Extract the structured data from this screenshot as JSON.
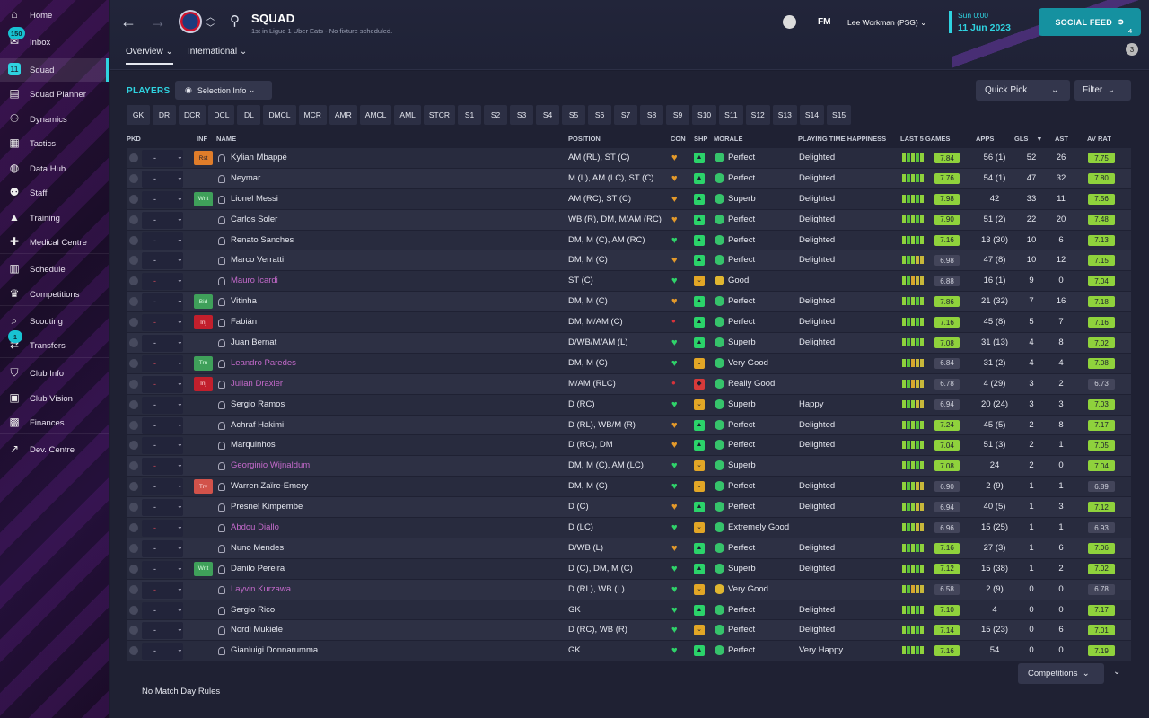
{
  "sidebar": {
    "items": [
      {
        "label": "Home",
        "icon": "home-icon",
        "glyph": "⌂",
        "badge": ""
      },
      {
        "label": "Inbox",
        "icon": "inbox-icon",
        "glyph": "✉",
        "badge": "150"
      },
      {
        "label": "Squad",
        "icon": "squad-icon",
        "glyph": "11",
        "badge": ""
      },
      {
        "label": "Squad Planner",
        "icon": "clipboard-icon",
        "glyph": "▤",
        "badge": ""
      },
      {
        "label": "Dynamics",
        "icon": "dynamics-icon",
        "glyph": "⚇",
        "badge": ""
      },
      {
        "label": "Tactics",
        "icon": "tactics-icon",
        "glyph": "▦",
        "badge": ""
      },
      {
        "label": "Data Hub",
        "icon": "data-hub-icon",
        "glyph": "◍",
        "badge": ""
      },
      {
        "label": "Staff",
        "icon": "staff-icon",
        "glyph": "⚉",
        "badge": ""
      },
      {
        "label": "Training",
        "icon": "training-icon",
        "glyph": "▲",
        "badge": ""
      },
      {
        "label": "Medical Centre",
        "icon": "medical-icon",
        "glyph": "✚",
        "badge": ""
      },
      {
        "label": "Schedule",
        "icon": "schedule-icon",
        "glyph": "▥",
        "badge": ""
      },
      {
        "label": "Competitions",
        "icon": "trophy-icon",
        "glyph": "♛",
        "badge": ""
      },
      {
        "label": "Scouting",
        "icon": "scouting-icon",
        "glyph": "⌕",
        "badge": ""
      },
      {
        "label": "Transfers",
        "icon": "transfers-icon",
        "glyph": "⇄",
        "badge": "1"
      },
      {
        "label": "Club Info",
        "icon": "shield-icon",
        "glyph": "⛉",
        "badge": ""
      },
      {
        "label": "Club Vision",
        "icon": "briefcase-icon",
        "glyph": "▣",
        "badge": ""
      },
      {
        "label": "Finances",
        "icon": "finances-icon",
        "glyph": "▩",
        "badge": ""
      },
      {
        "label": "Dev. Centre",
        "icon": "dev-centre-icon",
        "glyph": "↗",
        "badge": ""
      }
    ],
    "active": "Squad"
  },
  "topbar": {
    "title": "SQUAD",
    "subtitle": "1st in Ligue 1 Uber Eats - No fixture scheduled.",
    "tabs": [
      "Overview",
      "International"
    ],
    "manager": "Lee Workman (PSG)",
    "fm_logo": "FM",
    "time": "Sun 0:00",
    "date": "11 Jun 2023",
    "social_feed": "SOCIAL FEED",
    "social_count": "4",
    "notification_count": "3"
  },
  "toolbar": {
    "players_label": "PLAYERS",
    "selection_info": "Selection Info",
    "quick_pick": "Quick Pick",
    "filter": "Filter"
  },
  "positions": [
    "GK",
    "DR",
    "DCR",
    "DCL",
    "DL",
    "DMCL",
    "MCR",
    "AMR",
    "AMCL",
    "AML",
    "STCR",
    "S1",
    "S2",
    "S3",
    "S4",
    "S5",
    "S6",
    "S7",
    "S8",
    "S9",
    "S10",
    "S11",
    "S12",
    "S13",
    "S14",
    "S15"
  ],
  "columns": {
    "pkd": "PKD",
    "inf": "INF",
    "name": "NAME",
    "position": "POSITION",
    "con": "CON",
    "shp": "SHP",
    "morale": "MORALE",
    "pth": "PLAYING TIME HAPPINESS",
    "last5": "LAST 5 GAMES",
    "apps": "APPS",
    "gls": "GLS",
    "ast": "AST",
    "avrat": "AV RAT"
  },
  "players": [
    {
      "name": "Kylian Mbappé",
      "loan": false,
      "inf": "Rst",
      "pos": "AM (RL), ST (C)",
      "con": "h",
      "shp": "g",
      "mor": "Perfect",
      "morc": "g",
      "pth": "Delighted",
      "l5": "ggggg",
      "l5r": "7.84",
      "apps": "56 (1)",
      "gls": "52",
      "ast": "26",
      "avr": "7.75",
      "pkdRed": false
    },
    {
      "name": "Neymar",
      "loan": false,
      "inf": "",
      "pos": "M (L), AM (LC), ST (C)",
      "con": "h",
      "shp": "g",
      "mor": "Perfect",
      "morc": "g",
      "pth": "Delighted",
      "l5": "ggggg",
      "l5r": "7.76",
      "apps": "54 (1)",
      "gls": "47",
      "ast": "32",
      "avr": "7.80",
      "pkdRed": false
    },
    {
      "name": "Lionel Messi",
      "loan": false,
      "inf": "Wnt",
      "pos": "AM (RC), ST (C)",
      "con": "h",
      "shp": "g",
      "mor": "Superb",
      "morc": "g",
      "pth": "Delighted",
      "l5": "ggggg",
      "l5r": "7.98",
      "apps": "42",
      "gls": "33",
      "ast": "11",
      "avr": "7.56",
      "pkdRed": false
    },
    {
      "name": "Carlos Soler",
      "loan": false,
      "inf": "",
      "pos": "WB (R), DM, M/AM (RC)",
      "con": "h",
      "shp": "g",
      "mor": "Perfect",
      "morc": "g",
      "pth": "Delighted",
      "l5": "ggggg",
      "l5r": "7.90",
      "apps": "51 (2)",
      "gls": "22",
      "ast": "20",
      "avr": "7.48",
      "pkdRed": false
    },
    {
      "name": "Renato Sanches",
      "loan": false,
      "inf": "",
      "pos": "DM, M (C), AM (RC)",
      "con": "g",
      "shp": "g",
      "mor": "Perfect",
      "morc": "g",
      "pth": "Delighted",
      "l5": "ggggg",
      "l5r": "7.16",
      "apps": "13 (30)",
      "gls": "10",
      "ast": "6",
      "avr": "7.13",
      "pkdRed": false
    },
    {
      "name": "Marco Verratti",
      "loan": false,
      "inf": "",
      "pos": "DM, M (C)",
      "con": "h",
      "shp": "g",
      "mor": "Perfect",
      "morc": "g",
      "pth": "Delighted",
      "l5": "ggggg",
      "l5r": "6.98",
      "apps": "47 (8)",
      "gls": "10",
      "ast": "12",
      "avr": "7.15",
      "pkdRed": false
    },
    {
      "name": "Mauro Icardi",
      "loan": true,
      "inf": "",
      "pos": "ST (C)",
      "con": "g",
      "shp": "y",
      "mor": "Good",
      "morc": "y",
      "pth": "",
      "l5": "ooooo",
      "l5r": "6.88",
      "apps": "16 (1)",
      "gls": "9",
      "ast": "0",
      "avr": "7.04",
      "pkdRed": true
    },
    {
      "name": "Vitinha",
      "loan": false,
      "inf": "Bid",
      "pos": "DM, M (C)",
      "con": "h",
      "shp": "g",
      "mor": "Perfect",
      "morc": "g",
      "pth": "Delighted",
      "l5": "ggggg",
      "l5r": "7.86",
      "apps": "21 (32)",
      "gls": "7",
      "ast": "16",
      "avr": "7.18",
      "pkdRed": false
    },
    {
      "name": "Fabián",
      "loan": false,
      "inf": "Inj",
      "pos": "DM, M/AM (C)",
      "con": "r",
      "shp": "g",
      "mor": "Perfect",
      "morc": "g",
      "pth": "Delighted",
      "l5": "ggggg",
      "l5r": "7.16",
      "apps": "45 (8)",
      "gls": "5",
      "ast": "7",
      "avr": "7.16",
      "pkdRed": true
    },
    {
      "name": "Juan Bernat",
      "loan": false,
      "inf": "",
      "pos": "D/WB/M/AM (L)",
      "con": "g",
      "shp": "g",
      "mor": "Superb",
      "morc": "g",
      "pth": "Delighted",
      "l5": "ggggg",
      "l5r": "7.08",
      "apps": "31 (13)",
      "gls": "4",
      "ast": "8",
      "avr": "7.02",
      "pkdRed": false
    },
    {
      "name": "Leandro Paredes",
      "loan": true,
      "inf": "Trn",
      "pos": "DM, M (C)",
      "con": "g",
      "shp": "y",
      "mor": "Very Good",
      "morc": "g",
      "pth": "",
      "l5": "ggggg",
      "l5r": "6.84",
      "apps": "31 (2)",
      "gls": "4",
      "ast": "4",
      "avr": "7.08",
      "pkdRed": true
    },
    {
      "name": "Julian Draxler",
      "loan": true,
      "inf": "Inj",
      "pos": "M/AM (RLC)",
      "con": "r",
      "shp": "r",
      "mor": "Really Good",
      "morc": "g",
      "pth": "",
      "l5": "ggggg",
      "l5r": "6.78",
      "apps": "4 (29)",
      "gls": "3",
      "ast": "2",
      "avr": "6.73",
      "pkdRed": true
    },
    {
      "name": "Sergio Ramos",
      "loan": false,
      "inf": "",
      "pos": "D (RC)",
      "con": "g",
      "shp": "y",
      "mor": "Superb",
      "morc": "g",
      "pth": "Happy",
      "l5": "ggggg",
      "l5r": "6.94",
      "apps": "20 (24)",
      "gls": "3",
      "ast": "3",
      "avr": "7.03",
      "pkdRed": false
    },
    {
      "name": "Achraf Hakimi",
      "loan": false,
      "inf": "",
      "pos": "D (RL), WB/M (R)",
      "con": "h",
      "shp": "g",
      "mor": "Perfect",
      "morc": "g",
      "pth": "Delighted",
      "l5": "ggggg",
      "l5r": "7.24",
      "apps": "45 (5)",
      "gls": "2",
      "ast": "8",
      "avr": "7.17",
      "pkdRed": false
    },
    {
      "name": "Marquinhos",
      "loan": false,
      "inf": "",
      "pos": "D (RC), DM",
      "con": "h",
      "shp": "g",
      "mor": "Perfect",
      "morc": "g",
      "pth": "Delighted",
      "l5": "ggggg",
      "l5r": "7.04",
      "apps": "51 (3)",
      "gls": "2",
      "ast": "1",
      "avr": "7.05",
      "pkdRed": false
    },
    {
      "name": "Georginio Wijnaldum",
      "loan": true,
      "inf": "",
      "pos": "DM, M (C), AM (LC)",
      "con": "g",
      "shp": "y",
      "mor": "Superb",
      "morc": "g",
      "pth": "",
      "l5": "ggggg",
      "l5r": "7.08",
      "apps": "24",
      "gls": "2",
      "ast": "0",
      "avr": "7.04",
      "pkdRed": true
    },
    {
      "name": "Warren Zaïre-Emery",
      "loan": false,
      "inf": "Trv",
      "pos": "DM, M (C)",
      "con": "g",
      "shp": "y",
      "mor": "Perfect",
      "morc": "g",
      "pth": "Delighted",
      "l5": "ggggg",
      "l5r": "6.90",
      "apps": "2 (9)",
      "gls": "1",
      "ast": "1",
      "avr": "6.89",
      "pkdRed": false
    },
    {
      "name": "Presnel Kimpembe",
      "loan": false,
      "inf": "",
      "pos": "D (C)",
      "con": "h",
      "shp": "g",
      "mor": "Perfect",
      "morc": "g",
      "pth": "Delighted",
      "l5": "ggggg",
      "l5r": "6.94",
      "apps": "40 (5)",
      "gls": "1",
      "ast": "3",
      "avr": "7.12",
      "pkdRed": false
    },
    {
      "name": "Abdou Diallo",
      "loan": true,
      "inf": "",
      "pos": "D (LC)",
      "con": "g",
      "shp": "y",
      "mor": "Extremely Good",
      "morc": "g",
      "pth": "",
      "l5": "ggggg",
      "l5r": "6.96",
      "apps": "15 (25)",
      "gls": "1",
      "ast": "1",
      "avr": "6.93",
      "pkdRed": true
    },
    {
      "name": "Nuno Mendes",
      "loan": false,
      "inf": "",
      "pos": "D/WB (L)",
      "con": "h",
      "shp": "g",
      "mor": "Perfect",
      "morc": "g",
      "pth": "Delighted",
      "l5": "ggggg",
      "l5r": "7.16",
      "apps": "27 (3)",
      "gls": "1",
      "ast": "6",
      "avr": "7.06",
      "pkdRed": false
    },
    {
      "name": "Danilo Pereira",
      "loan": false,
      "inf": "Wnt",
      "pos": "D (C), DM, M (C)",
      "con": "g",
      "shp": "g",
      "mor": "Superb",
      "morc": "g",
      "pth": "Delighted",
      "l5": "ggggg",
      "l5r": "7.12",
      "apps": "15 (38)",
      "gls": "1",
      "ast": "2",
      "avr": "7.02",
      "pkdRed": false
    },
    {
      "name": "Layvin Kurzawa",
      "loan": true,
      "inf": "",
      "pos": "D (RL), WB (L)",
      "con": "g",
      "shp": "y",
      "mor": "Very Good",
      "morc": "y",
      "pth": "",
      "l5": "ggggg",
      "l5r": "6.58",
      "apps": "2 (9)",
      "gls": "0",
      "ast": "0",
      "avr": "6.78",
      "pkdRed": true
    },
    {
      "name": "Sergio Rico",
      "loan": false,
      "inf": "",
      "pos": "GK",
      "con": "g",
      "shp": "g",
      "mor": "Perfect",
      "morc": "g",
      "pth": "Delighted",
      "l5": "ggggg",
      "l5r": "7.10",
      "apps": "4",
      "gls": "0",
      "ast": "0",
      "avr": "7.17",
      "pkdRed": false
    },
    {
      "name": "Nordi Mukiele",
      "loan": false,
      "inf": "",
      "pos": "D (RC), WB (R)",
      "con": "g",
      "shp": "y",
      "mor": "Perfect",
      "morc": "g",
      "pth": "Delighted",
      "l5": "ggggg",
      "l5r": "7.14",
      "apps": "15 (23)",
      "gls": "0",
      "ast": "6",
      "avr": "7.01",
      "pkdRed": false
    },
    {
      "name": "Gianluigi Donnarumma",
      "loan": false,
      "inf": "",
      "pos": "GK",
      "con": "g",
      "shp": "g",
      "mor": "Perfect",
      "morc": "g",
      "pth": "Very Happy",
      "l5": "ggggg",
      "l5r": "7.16",
      "apps": "54",
      "gls": "0",
      "ast": "0",
      "avr": "7.19",
      "pkdRed": false
    }
  ],
  "footer": {
    "match_day_rules": "No Match Day Rules",
    "competitions": "Competitions"
  },
  "colors": {
    "accent": "#2fd3e0",
    "loan_name": "#c46acb",
    "rating_high": "#8fd23c",
    "rating_mid": "#68b83a"
  }
}
